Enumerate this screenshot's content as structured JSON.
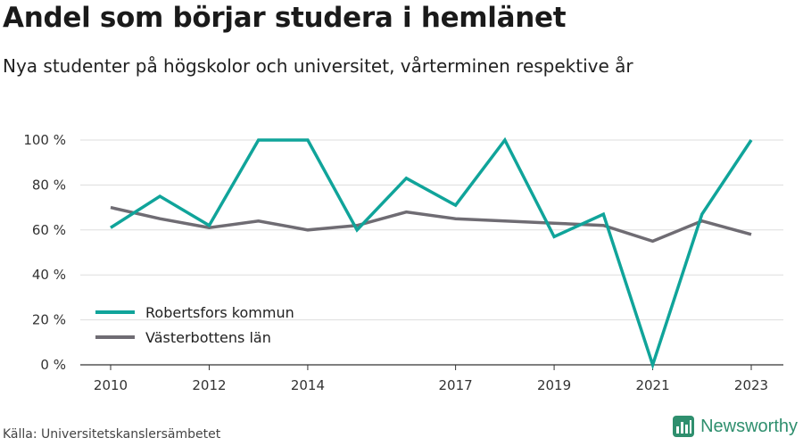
{
  "header": {
    "title": "Andel som börjar studera i hemlänet",
    "subtitle": "Nya studenter på högskolor och universitet, vårterminen respektive år"
  },
  "footer": {
    "source": "Källa: Universitetskanslersämbetet",
    "brand": "Newsworthy",
    "brand_color": "#2f8f6e"
  },
  "chart_data": {
    "type": "line",
    "title": "Andel som börjar studera i hemlänet",
    "subtitle": "Nya studenter på högskolor och universitet, vårterminen respektive år",
    "xlabel": "",
    "ylabel": "",
    "x": [
      2010,
      2011,
      2012,
      2013,
      2014,
      2015,
      2016,
      2017,
      2018,
      2019,
      2020,
      2021,
      2022,
      2023
    ],
    "xlim": [
      2010,
      2023
    ],
    "x_ticks": [
      "2010",
      "2012",
      "2014",
      "2017",
      "2019",
      "2021",
      "2023"
    ],
    "x_tick_values": [
      2010,
      2012,
      2014,
      2017,
      2019,
      2021,
      2023
    ],
    "ylim": [
      0,
      100
    ],
    "y_ticks": [
      "0 %",
      "20 %",
      "40 %",
      "60 %",
      "80 %",
      "100 %"
    ],
    "y_tick_values": [
      0,
      20,
      40,
      60,
      80,
      100
    ],
    "grid": true,
    "legend_position": "bottom-left",
    "series": [
      {
        "name": "Robertsfors kommun",
        "color": "#10a49a",
        "values": [
          61,
          75,
          62,
          100,
          100,
          60,
          83,
          71,
          100,
          57,
          67,
          0,
          67,
          100
        ]
      },
      {
        "name": "Västerbottens län",
        "color": "#6f6c73",
        "values": [
          70,
          65,
          61,
          64,
          60,
          62,
          68,
          65,
          64,
          63,
          62,
          55,
          64,
          58
        ]
      }
    ]
  }
}
